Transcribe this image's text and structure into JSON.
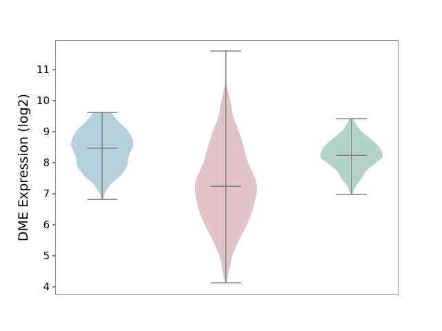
{
  "chart_data": {
    "type": "violin",
    "title": "",
    "xlabel": "",
    "ylabel": "DME Expression (log2)",
    "ylim": [
      3.77,
      12.0
    ],
    "yticks": [
      4,
      5,
      6,
      7,
      8,
      9,
      10,
      11
    ],
    "grid": false,
    "line_color": "#808080",
    "series": [
      {
        "color": "#b5cfdb",
        "min": 6.82,
        "max": 9.62,
        "median": 8.47,
        "density": [
          [
            6.82,
            0.03
          ],
          [
            7.0,
            0.08
          ],
          [
            7.3,
            0.27
          ],
          [
            7.6,
            0.6
          ],
          [
            7.9,
            0.8
          ],
          [
            8.2,
            0.85
          ],
          [
            8.6,
            1.0
          ],
          [
            9.0,
            0.85
          ],
          [
            9.3,
            0.55
          ],
          [
            9.5,
            0.38
          ],
          [
            9.62,
            0.3
          ]
        ]
      },
      {
        "color": "#e0c4ca",
        "min": 4.13,
        "max": 11.6,
        "median": 7.24,
        "density": [
          [
            4.13,
            0.02
          ],
          [
            4.5,
            0.1
          ],
          [
            5.0,
            0.21
          ],
          [
            5.5,
            0.42
          ],
          [
            6.0,
            0.68
          ],
          [
            6.5,
            0.87
          ],
          [
            7.1,
            1.0
          ],
          [
            7.5,
            0.94
          ],
          [
            8.0,
            0.72
          ],
          [
            8.5,
            0.58
          ],
          [
            9.0,
            0.42
          ],
          [
            9.5,
            0.24
          ],
          [
            10.0,
            0.15
          ],
          [
            10.5,
            0.03
          ],
          [
            11.0,
            0.005
          ],
          [
            11.6,
            0.0
          ]
        ]
      },
      {
        "color": "#b4d3c8",
        "min": 6.98,
        "max": 9.42,
        "median": 8.24,
        "density": [
          [
            6.98,
            0.03
          ],
          [
            7.25,
            0.14
          ],
          [
            7.5,
            0.33
          ],
          [
            7.75,
            0.48
          ],
          [
            8.0,
            0.79
          ],
          [
            8.2,
            1.0
          ],
          [
            8.5,
            0.9
          ],
          [
            8.75,
            0.64
          ],
          [
            9.0,
            0.33
          ],
          [
            9.2,
            0.18
          ],
          [
            9.42,
            0.05
          ]
        ]
      }
    ]
  }
}
